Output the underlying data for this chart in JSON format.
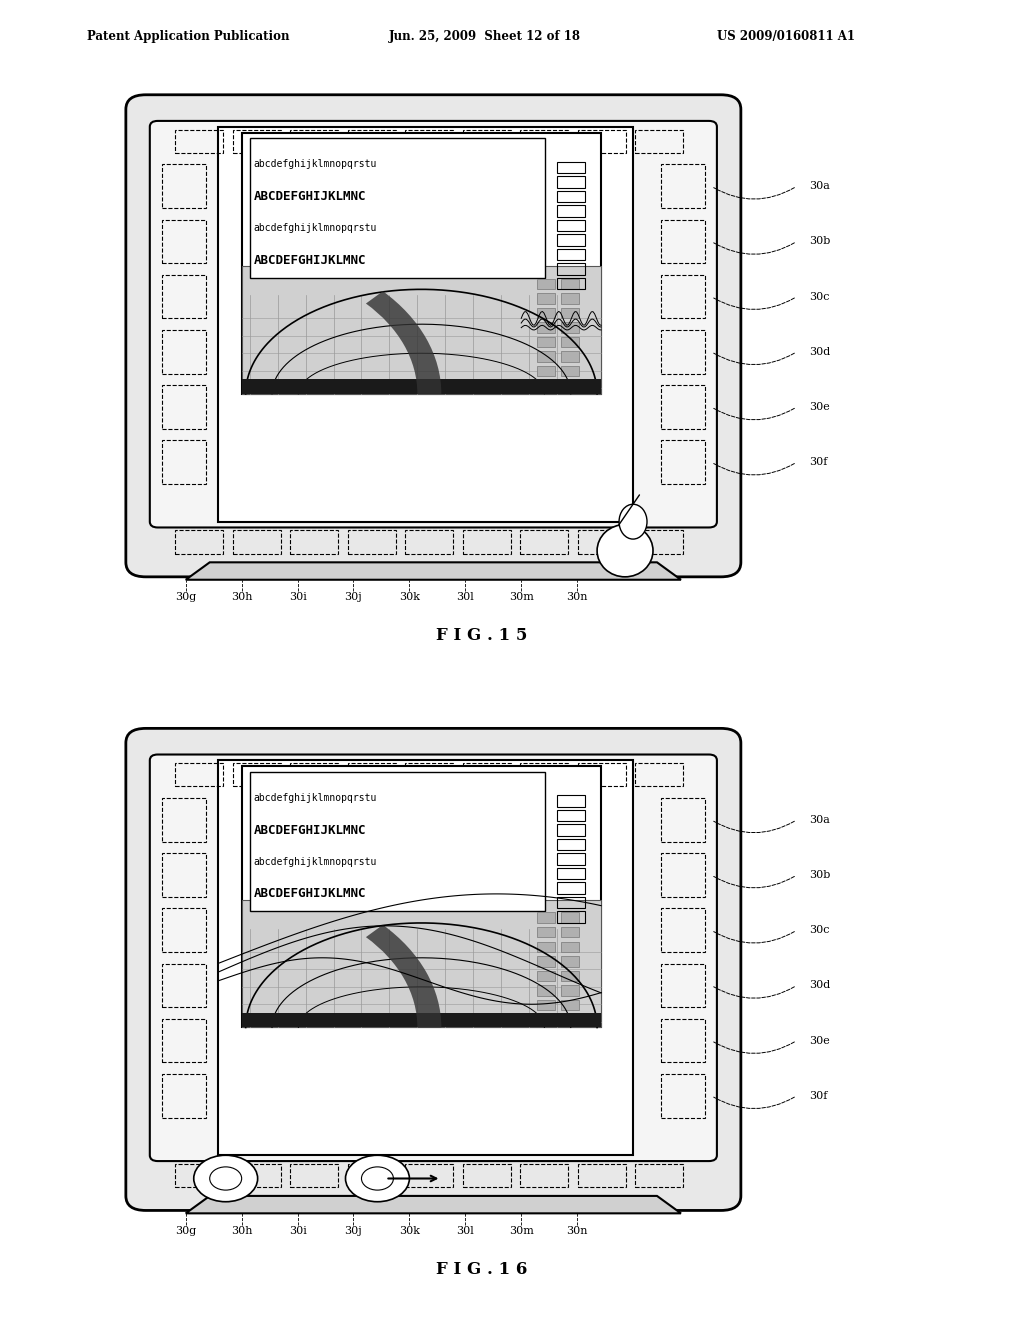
{
  "header_left": "Patent Application Publication",
  "header_center": "Jun. 25, 2009  Sheet 12 of 18",
  "header_right": "US 2009/0160811 A1",
  "fig15_title": "F I G . 1 5",
  "fig16_title": "F I G . 1 6",
  "bg_color": "#ffffff",
  "text_color": "#000000",
  "labels_right": [
    "30a",
    "30b",
    "30c",
    "30d",
    "30e",
    "30f"
  ],
  "labels_bottom": [
    "30g",
    "30h",
    "30i",
    "30j",
    "30k",
    "30l",
    "30m",
    "30n"
  ],
  "text_rows_small": [
    "abcdefghijklmnopqrstu",
    "abcdefghijklmnopqrstu"
  ],
  "text_rows_large": [
    "ABCDEFGHIJKLMNC",
    "ABCDEFGHIJKLMNC"
  ]
}
